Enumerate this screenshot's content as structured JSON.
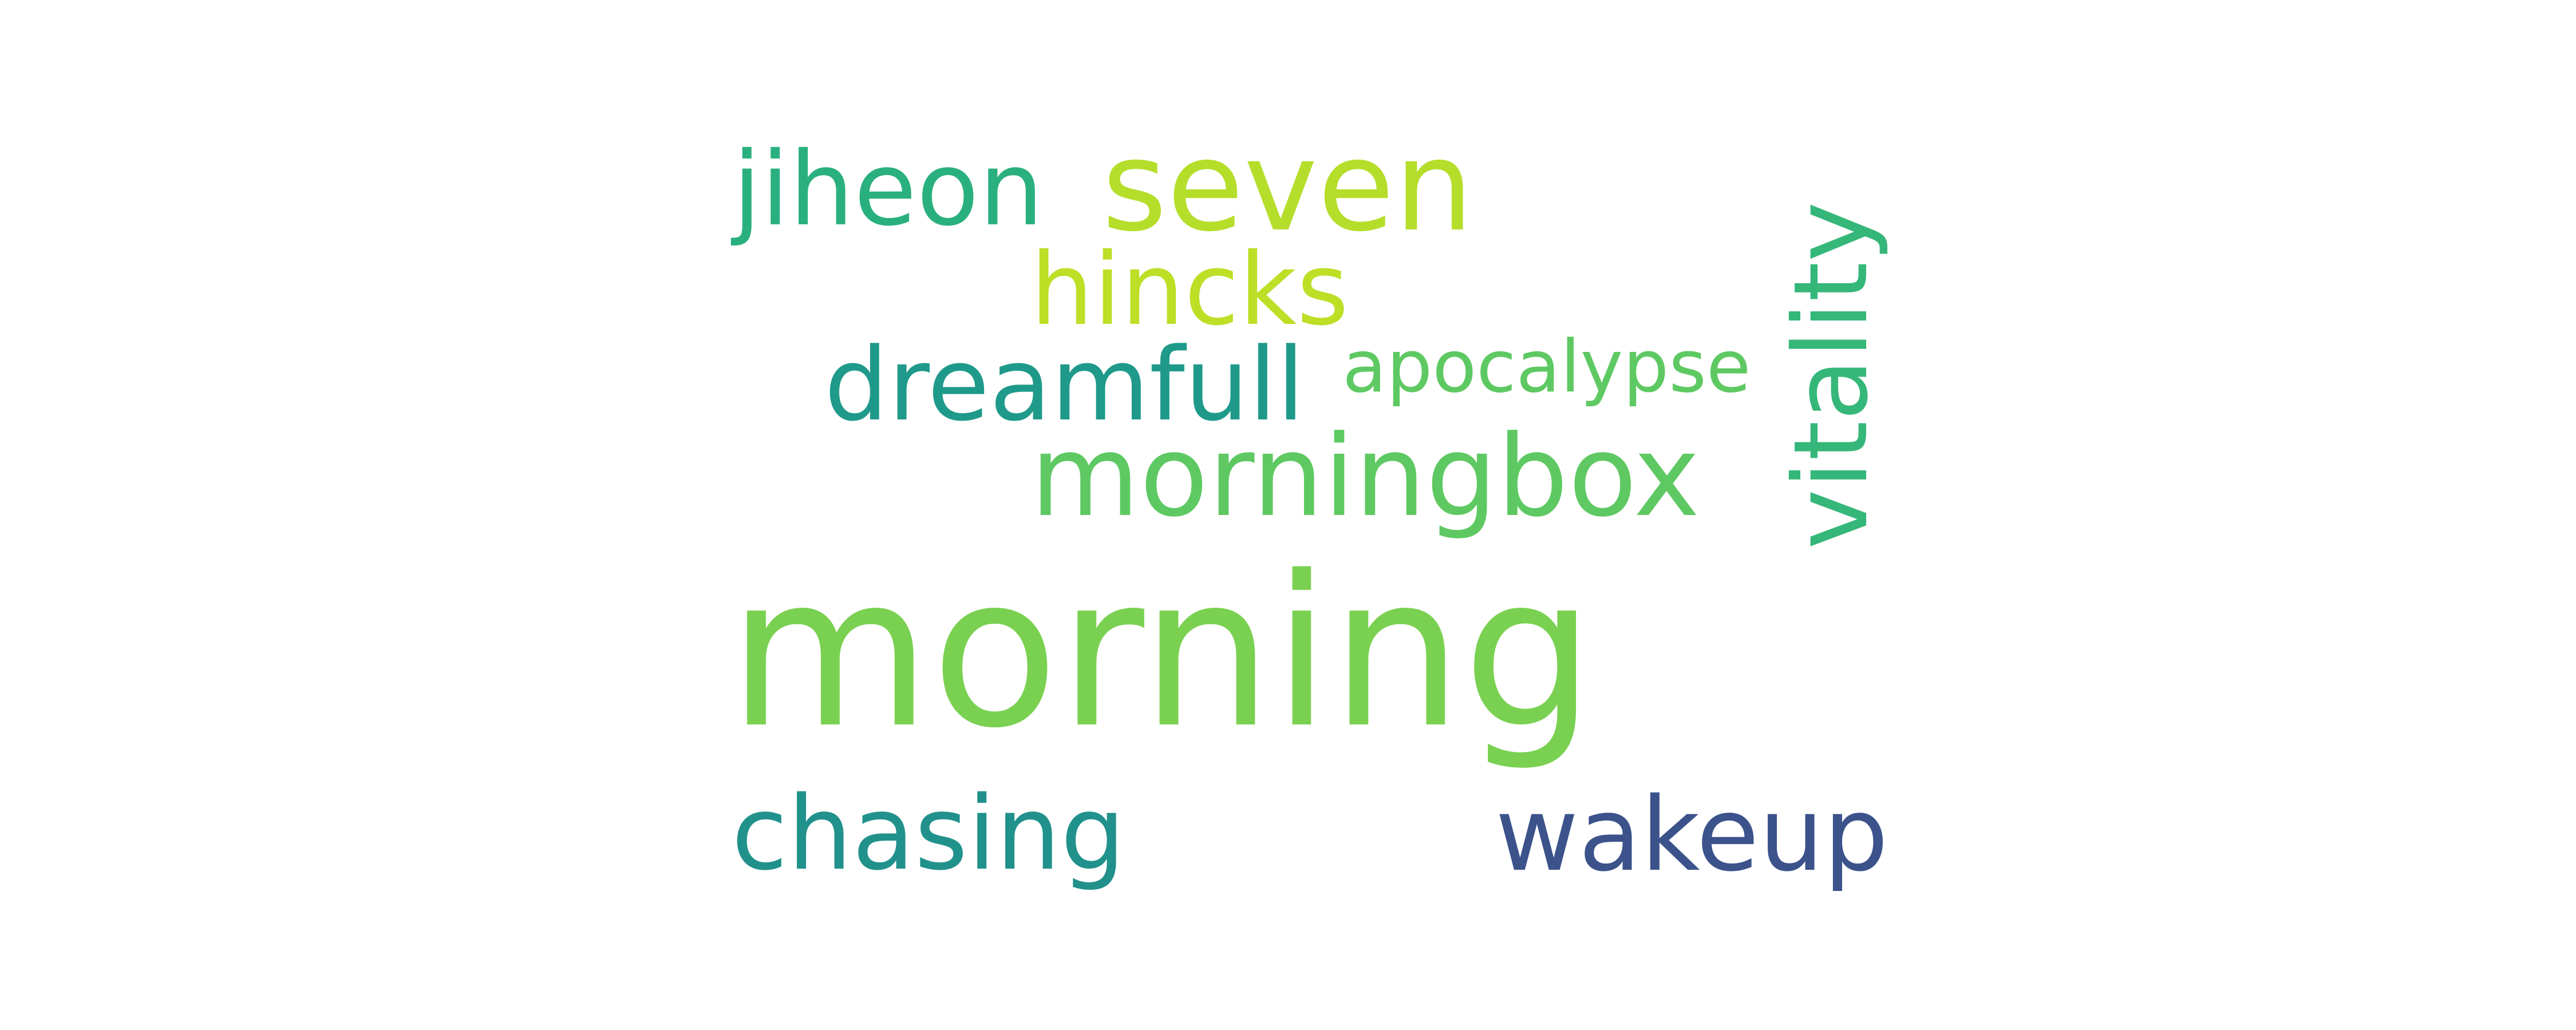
{
  "words": [
    {
      "text": "morning",
      "color": "#7ad151"
    },
    {
      "text": "morningbox",
      "color": "#5ec962"
    },
    {
      "text": "seven",
      "color": "#b5de2b"
    },
    {
      "text": "jiheon",
      "color": "#2ab07f"
    },
    {
      "text": "hincks",
      "color": "#bddf26"
    },
    {
      "text": "dreamfull",
      "color": "#1f9a8a"
    },
    {
      "text": "apocalypse",
      "color": "#5ec962"
    },
    {
      "text": "chasing",
      "color": "#21918c"
    },
    {
      "text": "vitality",
      "color": "#35b779"
    },
    {
      "text": "wakeup",
      "color": "#3b528b"
    }
  ]
}
